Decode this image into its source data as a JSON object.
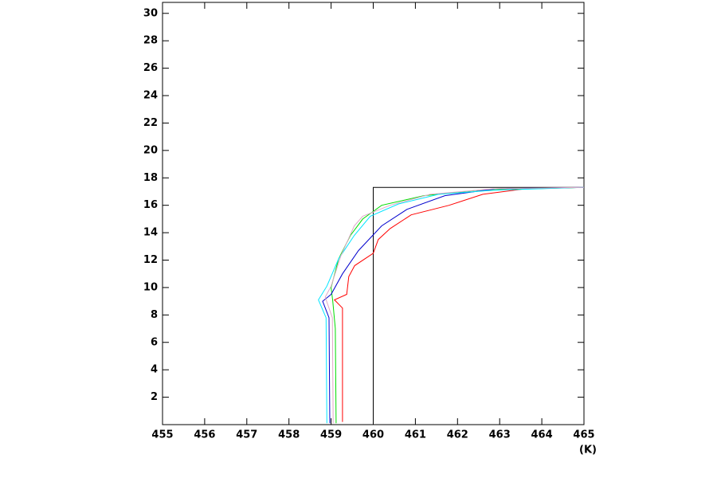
{
  "chart_data": {
    "type": "line",
    "x_label": "(K)",
    "xlim": [
      455,
      465
    ],
    "xticks": [
      455,
      456,
      457,
      458,
      459,
      460,
      461,
      462,
      463,
      464,
      465
    ],
    "ylim": [
      0,
      30.8
    ],
    "yticks": [
      2,
      4,
      6,
      8,
      10,
      12,
      14,
      16,
      18,
      20,
      22,
      24,
      26,
      28,
      30
    ],
    "series": [
      {
        "color": "#000000",
        "x": [
          460,
          460,
          465
        ],
        "y": [
          0,
          17.3,
          17.3
        ]
      },
      {
        "color": "#ff0000",
        "x": [
          459.27,
          459.27,
          459.08,
          459.37,
          459.42,
          459.56,
          460.0,
          460.12,
          460.4,
          460.9,
          461.8,
          462.6,
          463.6,
          465
        ],
        "y": [
          0.2,
          8.5,
          9.1,
          9.5,
          10.8,
          11.6,
          12.5,
          13.5,
          14.3,
          15.3,
          16.0,
          16.8,
          17.2,
          17.3
        ]
      },
      {
        "color": "#00dd00",
        "x": [
          459.12,
          459.1,
          459.04,
          459.0,
          459.18,
          459.46,
          459.75,
          460.2,
          461.2,
          462.5,
          465
        ],
        "y": [
          0.1,
          7.0,
          9.0,
          10.0,
          12.1,
          13.8,
          15.0,
          16.0,
          16.7,
          17.1,
          17.3
        ]
      },
      {
        "color": "#0000cd",
        "x": [
          458.97,
          458.95,
          458.8,
          459.0,
          459.27,
          459.65,
          460.2,
          460.8,
          461.7,
          462.9,
          465
        ],
        "y": [
          0.1,
          7.8,
          9.0,
          9.5,
          11.0,
          12.7,
          14.5,
          15.7,
          16.7,
          17.2,
          17.3
        ]
      },
      {
        "color": "#00e5ff",
        "x": [
          458.9,
          458.88,
          458.7,
          458.9,
          459.18,
          459.55,
          459.93,
          460.6,
          461.55,
          462.86,
          465
        ],
        "y": [
          0.1,
          7.8,
          9.1,
          10.1,
          12.1,
          13.8,
          15.2,
          16.1,
          16.8,
          17.1,
          17.3
        ]
      },
      {
        "color": "#e0a8c8",
        "x": [
          459.05,
          459.03,
          458.86,
          459.0,
          459.23,
          459.55,
          459.75,
          460.4,
          461.35,
          462.86,
          465
        ],
        "y": [
          0.1,
          7.8,
          9.3,
          10.1,
          12.3,
          14.5,
          15.2,
          16.0,
          16.8,
          17.2,
          17.3
        ]
      }
    ]
  }
}
